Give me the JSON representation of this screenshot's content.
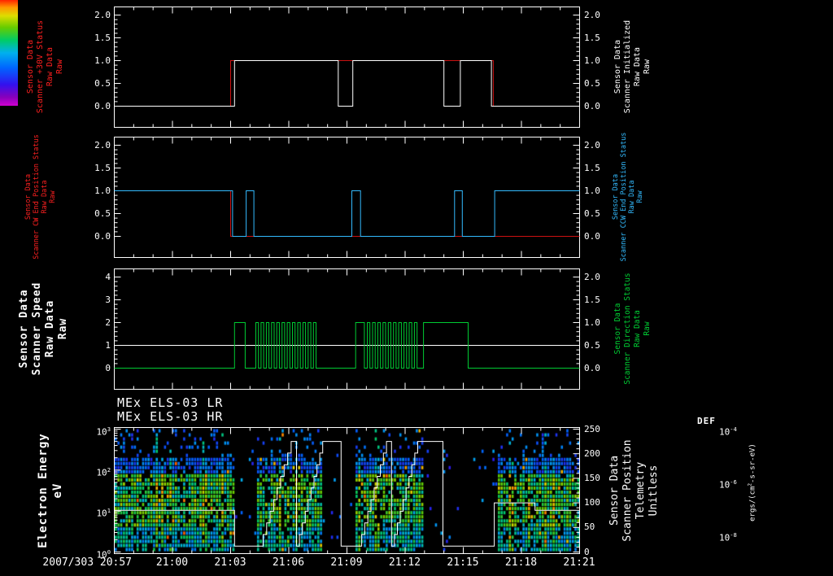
{
  "titles": [
    "MEx ELS-03 LR",
    "MEx ELS-03 HR"
  ],
  "x_axis": {
    "tick_labels": [
      "2007/303 20:57",
      "21:00",
      "21:03",
      "21:06",
      "21:09",
      "21:12",
      "21:15",
      "21:18",
      "21:21"
    ],
    "tick_minutes": [
      0,
      3,
      6,
      9,
      12,
      15,
      18,
      21,
      24
    ],
    "minutes_range": [
      0,
      24
    ],
    "start_time": "2007/303 20:57",
    "end_time": "21:21"
  },
  "colorbar": {
    "title": "DEF",
    "units": "ergs/(cm^2-s-sr-eV)",
    "ticks": [
      {
        "label": "10^-4",
        "frac": 1
      },
      {
        "label": "10^-6",
        "frac": 0.5
      },
      {
        "label": "10^-8",
        "frac": 0
      }
    ],
    "stops": [
      [
        0,
        "#d000d0"
      ],
      [
        0.08,
        "#8800bb"
      ],
      [
        0.2,
        "#3311ee"
      ],
      [
        0.36,
        "#0066ff"
      ],
      [
        0.5,
        "#00b0ee"
      ],
      [
        0.62,
        "#00cc66"
      ],
      [
        0.74,
        "#66cc00"
      ],
      [
        0.85,
        "#dddd00"
      ],
      [
        0.93,
        "#ff9900"
      ],
      [
        1,
        "#ff2200"
      ]
    ]
  },
  "chart_data": [
    {
      "type": "line",
      "name": "scanner-30v-and-initialized",
      "y_left": {
        "range": [
          0,
          2
        ],
        "ticks": [
          {
            "v": 0,
            "label": "0.0"
          },
          {
            "v": 0.5,
            "label": "0.5"
          },
          {
            "v": 1,
            "label": "1.0"
          },
          {
            "v": 1.5,
            "label": "1.5"
          },
          {
            "v": 2,
            "label": "2.0"
          }
        ]
      },
      "y_right": {
        "range": [
          0,
          2
        ],
        "ticks": [
          {
            "v": 0,
            "label": "0.0"
          },
          {
            "v": 0.5,
            "label": "0.5"
          },
          {
            "v": 1,
            "label": "1.0"
          },
          {
            "v": 1.5,
            "label": "1.5"
          },
          {
            "v": 2,
            "label": "2.0"
          }
        ]
      },
      "left_label": {
        "color": "#ff2020",
        "lines": [
          "Sensor Data",
          "Scanner +30V Status",
          "Raw Data",
          "Raw"
        ]
      },
      "right_label": {
        "color": "#ffffff",
        "lines": [
          "Sensor Data",
          "Scanner Initialized",
          "Raw Data",
          "Raw"
        ]
      },
      "series": [
        {
          "name": "scanner-plus30v-status",
          "color": "#cc1111",
          "scale": "left",
          "events": [
            [
              0,
              0
            ],
            [
              6.0,
              1
            ],
            [
              19.55,
              0
            ]
          ]
        },
        {
          "name": "scanner-initialized",
          "color": "#ffffff",
          "scale": "left",
          "events": [
            [
              0,
              0
            ],
            [
              6.2,
              1
            ],
            [
              11.55,
              0
            ],
            [
              12.3,
              1
            ],
            [
              17.0,
              0
            ],
            [
              17.85,
              1
            ],
            [
              19.45,
              0
            ]
          ]
        }
      ]
    },
    {
      "type": "line",
      "name": "scanner-end-position-status",
      "y_left": {
        "range": [
          0,
          2
        ],
        "ticks": [
          {
            "v": 0,
            "label": "0.0"
          },
          {
            "v": 0.5,
            "label": "0.5"
          },
          {
            "v": 1,
            "label": "1.0"
          },
          {
            "v": 1.5,
            "label": "1.5"
          },
          {
            "v": 2,
            "label": "2.0"
          }
        ]
      },
      "y_right": {
        "range": [
          0,
          2
        ],
        "ticks": [
          {
            "v": 0,
            "label": "0.0"
          },
          {
            "v": 0.5,
            "label": "0.5"
          },
          {
            "v": 1,
            "label": "1.0"
          },
          {
            "v": 1.5,
            "label": "1.5"
          },
          {
            "v": 2,
            "label": "2.0"
          }
        ]
      },
      "left_label": {
        "color": "#ff2020",
        "lines": [
          "Sensor Data",
          "Scanner CW End Position Status",
          "Raw Data",
          "Raw"
        ]
      },
      "right_label": {
        "color": "#33bbff",
        "lines": [
          "Sensor Data",
          "Scanner CCW End Position Status",
          "Raw Data",
          "Raw"
        ]
      },
      "series": [
        {
          "name": "scanner-cw-end-position-status",
          "color": "#cc1111",
          "scale": "left",
          "events": [
            [
              0,
              1
            ],
            [
              6.0,
              0
            ]
          ]
        },
        {
          "name": "scanner-ccw-end-position-status",
          "color": "#33bbff",
          "scale": "left",
          "events": [
            [
              0,
              1
            ],
            [
              6.1,
              0
            ],
            [
              6.8,
              1
            ],
            [
              7.2,
              0
            ],
            [
              12.25,
              1
            ],
            [
              12.7,
              0
            ],
            [
              17.55,
              1
            ],
            [
              17.95,
              0
            ],
            [
              19.62,
              1
            ]
          ]
        }
      ]
    },
    {
      "type": "line",
      "name": "scanner-speed-and-direction",
      "y_left": {
        "range": [
          0,
          4
        ],
        "ticks": [
          {
            "v": 0,
            "label": "0"
          },
          {
            "v": 1,
            "label": "1"
          },
          {
            "v": 2,
            "label": "2"
          },
          {
            "v": 3,
            "label": "3"
          },
          {
            "v": 4,
            "label": "4"
          }
        ]
      },
      "y_right": {
        "range": [
          0,
          2
        ],
        "ticks": [
          {
            "v": 0,
            "label": "0.0"
          },
          {
            "v": 0.5,
            "label": "0.5"
          },
          {
            "v": 1,
            "label": "1.0"
          },
          {
            "v": 1.5,
            "label": "1.5"
          },
          {
            "v": 2,
            "label": "2.0"
          }
        ]
      },
      "left_label": {
        "color": "#ffffff",
        "emphasis": true,
        "lines": [
          "Sensor Data",
          "Scanner Speed",
          "Raw Data",
          "Raw"
        ]
      },
      "right_label": {
        "color": "#00cc33",
        "lines": [
          "Sensor Data",
          "Scanner Direction Status",
          "Raw Data",
          "Raw"
        ]
      },
      "series": [
        {
          "name": "scanner-speed",
          "color": "#ffffff",
          "scale": "left",
          "events": [
            [
              0,
              1
            ]
          ]
        },
        {
          "name": "scanner-direction-status",
          "color": "#00cc33",
          "scale": "right",
          "segments": [
            {
              "type": "flat",
              "t0": 0,
              "t1": 6.2,
              "v": 0
            },
            {
              "type": "flat",
              "t0": 6.2,
              "t1": 6.75,
              "v": 1
            },
            {
              "type": "flat",
              "t0": 6.75,
              "t1": 7.3,
              "v": 0
            },
            {
              "type": "square",
              "t0": 7.3,
              "t1": 10.5,
              "period": 0.27,
              "hi": 1,
              "lo": 0
            },
            {
              "type": "flat",
              "t0": 10.5,
              "t1": 12.45,
              "v": 0
            },
            {
              "type": "flat",
              "t0": 12.45,
              "t1": 12.9,
              "v": 1
            },
            {
              "type": "flat",
              "t0": 12.9,
              "t1": 13.05,
              "v": 0
            },
            {
              "type": "square",
              "t0": 13.05,
              "t1": 15.75,
              "period": 0.27,
              "hi": 1,
              "lo": 0
            },
            {
              "type": "flat",
              "t0": 15.75,
              "t1": 15.95,
              "v": 0
            },
            {
              "type": "flat",
              "t0": 15.95,
              "t1": 18.25,
              "v": 1
            },
            {
              "type": "flat",
              "t0": 18.25,
              "t1": 24,
              "v": 0
            }
          ]
        }
      ]
    },
    {
      "type": "heatmap",
      "name": "els-electron-energy-spectrogram",
      "y_left": {
        "range": [
          0,
          3
        ],
        "log": true,
        "ticks": [
          {
            "v": 0,
            "label": "10^0"
          },
          {
            "v": 1,
            "label": "10^1"
          },
          {
            "v": 2,
            "label": "10^2"
          },
          {
            "v": 3,
            "label": "10^3"
          }
        ]
      },
      "y_right": {
        "range": [
          0,
          250
        ],
        "ticks": [
          {
            "v": 0,
            "label": "0"
          },
          {
            "v": 50,
            "label": "50"
          },
          {
            "v": 100,
            "label": "100"
          },
          {
            "v": 150,
            "label": "150"
          },
          {
            "v": 200,
            "label": "200"
          },
          {
            "v": 250,
            "label": "250"
          }
        ]
      },
      "left_label": {
        "color": "#ffffff",
        "emphasis": true,
        "lines": [
          "Electron Energy",
          "eV"
        ]
      },
      "right_label": {
        "color": "#ffffff",
        "lines": [
          "Sensor Data",
          "Scanner Position",
          "Telemetry",
          "Unitless"
        ]
      },
      "spectrogram": {
        "bands_minutes": [
          [
            0,
            6.2
          ],
          [
            7.35,
            10.7
          ],
          [
            12.45,
            15.9
          ],
          [
            19.7,
            24
          ]
        ],
        "energy_ev_range": [
          1,
          1000
        ],
        "dense_energy_log_max": 2.35,
        "seed": 20073031
      },
      "series": [
        {
          "name": "scanner-position-telemetry",
          "color": "#ffffff",
          "scale": "right",
          "segments": [
            {
              "type": "flat",
              "t0": 0,
              "t1": 6.2,
              "v": 85
            },
            {
              "type": "flat",
              "t0": 6.2,
              "t1": 7.5,
              "v": 12
            },
            {
              "type": "stair",
              "t0": 7.5,
              "t1": 9.3,
              "v0": 12,
              "v1": 225,
              "n": 10
            },
            {
              "type": "stair",
              "t0": 9.4,
              "t1": 10.9,
              "v0": 12,
              "v1": 225,
              "n": 10
            },
            {
              "type": "flat",
              "t0": 10.9,
              "t1": 11.7,
              "v": 225
            },
            {
              "type": "flat",
              "t0": 11.7,
              "t1": 12.6,
              "v": 12
            },
            {
              "type": "stair",
              "t0": 12.6,
              "t1": 14.2,
              "v0": 12,
              "v1": 225,
              "n": 10
            },
            {
              "type": "stair",
              "t0": 14.3,
              "t1": 15.8,
              "v0": 12,
              "v1": 225,
              "n": 10
            },
            {
              "type": "flat",
              "t0": 15.8,
              "t1": 16.95,
              "v": 225
            },
            {
              "type": "flat",
              "t0": 16.95,
              "t1": 19.6,
              "v": 12
            },
            {
              "type": "flat",
              "t0": 19.6,
              "t1": 21.7,
              "v": 100
            },
            {
              "type": "flat",
              "t0": 21.7,
              "t1": 24,
              "v": 85
            }
          ]
        }
      ]
    }
  ]
}
